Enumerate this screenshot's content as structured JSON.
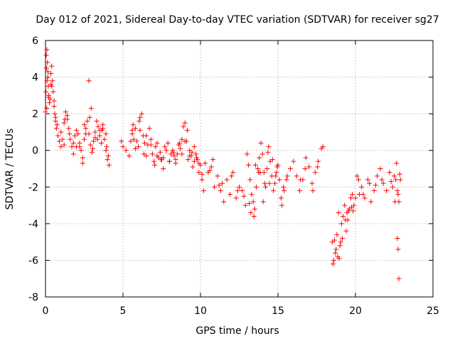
{
  "chart_data": {
    "type": "scatter",
    "title": "Day 012 of 2021, Sidereal Day-to-day VTEC variation (SDTVAR) for receiver sg27",
    "xlabel": "GPS time / hours",
    "ylabel": "SDTVAR / TECUs",
    "xlim": [
      0,
      25
    ],
    "ylim": [
      -8,
      6
    ],
    "xticks": [
      0,
      5,
      10,
      15,
      20,
      25
    ],
    "yticks": [
      -8,
      -6,
      -4,
      -2,
      0,
      2,
      4,
      6
    ],
    "grid": true,
    "marker": "+",
    "color": "#ff0000",
    "series": [
      {
        "name": "sg27",
        "x": [
          0.0,
          0.03,
          0.06,
          0.09,
          0.12,
          0.15,
          0.18,
          0.21,
          0.25,
          0.3,
          0.35,
          0.4,
          0.45,
          0.5,
          0.55,
          0.6,
          0.65,
          0.7,
          0.8,
          0.9,
          1.0,
          1.1,
          1.2,
          1.3,
          1.4,
          1.5,
          1.6,
          1.7,
          1.8,
          1.9,
          2.0,
          2.1,
          2.2,
          2.3,
          2.4,
          2.5,
          2.6,
          2.7,
          2.8,
          2.9,
          3.0,
          3.1,
          3.2,
          3.3,
          3.4,
          3.5,
          3.6,
          3.7,
          3.8,
          3.9,
          4.0,
          4.1,
          0.05,
          0.1,
          0.08,
          0.2,
          0.4,
          0.55,
          0.65,
          1.0,
          1.2,
          1.4,
          1.8,
          2.2,
          2.4,
          2.5,
          2.8,
          2.85,
          2.95,
          3.2,
          3.5,
          3.7,
          3.9,
          4.05,
          0.15,
          0.35,
          0.75,
          1.25,
          1.55,
          2.0,
          2.6,
          3.05,
          3.35,
          3.65,
          3.95,
          4.9,
          5.0,
          5.2,
          5.4,
          5.5,
          5.6,
          5.7,
          5.8,
          5.9,
          6.0,
          6.1,
          6.2,
          6.3,
          6.4,
          6.5,
          6.6,
          6.7,
          6.8,
          6.9,
          7.0,
          7.1,
          7.2,
          7.3,
          7.4,
          7.5,
          7.6,
          7.7,
          7.8,
          7.9,
          8.0,
          8.1,
          8.2,
          8.3,
          8.4,
          8.5,
          8.6,
          8.7,
          8.8,
          8.9,
          9.0,
          9.1,
          9.2,
          9.3,
          9.4,
          9.5,
          9.6,
          9.7,
          9.8,
          9.9,
          10.0,
          10.1,
          10.2,
          5.6,
          5.8,
          6.1,
          6.5,
          6.8,
          7.2,
          7.6,
          8.0,
          8.4,
          8.8,
          9.0,
          9.3,
          9.6,
          9.9,
          10.1,
          5.65,
          6.05,
          6.35,
          7.05,
          7.45,
          8.25,
          8.65,
          9.15,
          9.45,
          9.75,
          10.3,
          10.5,
          10.7,
          10.9,
          11.1,
          11.3,
          11.5,
          11.7,
          11.9,
          12.1,
          12.3,
          12.5,
          12.7,
          12.9,
          13.0,
          13.1,
          13.2,
          13.3,
          13.4,
          13.5,
          13.6,
          13.7,
          13.8,
          13.9,
          14.0,
          14.1,
          14.2,
          14.3,
          14.4,
          14.5,
          14.6,
          14.7,
          14.8,
          14.9,
          15.0,
          15.1,
          15.2,
          15.4,
          15.6,
          15.8,
          16.0,
          16.2,
          16.4,
          16.6,
          16.8,
          17.0,
          17.2,
          17.4,
          17.6,
          17.8,
          17.9,
          10.8,
          11.4,
          12.0,
          12.8,
          13.25,
          13.55,
          13.85,
          14.05,
          14.35,
          14.65,
          14.95,
          15.25,
          15.55,
          16.45,
          16.75,
          17.25,
          17.55,
          10.6,
          11.2,
          12.4,
          13.15,
          13.45,
          13.75,
          14.15,
          14.45,
          14.85,
          15.35,
          18.5,
          18.6,
          18.7,
          18.8,
          18.9,
          19.0,
          19.1,
          19.2,
          19.3,
          19.4,
          19.5,
          19.6,
          19.7,
          19.8,
          19.9,
          20.0,
          20.2,
          20.4,
          20.6,
          20.8,
          21.0,
          21.2,
          21.4,
          21.6,
          21.8,
          22.0,
          22.2,
          22.4,
          22.5,
          22.6,
          22.7,
          22.8,
          22.9,
          18.55,
          18.75,
          18.95,
          19.15,
          19.35,
          19.55,
          19.75,
          20.1,
          20.5,
          20.9,
          21.3,
          21.7,
          22.3,
          22.55,
          22.65,
          22.75,
          22.85,
          22.7,
          22.75,
          22.8,
          18.65,
          18.85,
          19.05,
          19.45,
          19.85,
          20.25
        ],
        "y": [
          2.1,
          3.2,
          4.5,
          5.5,
          4.8,
          4.0,
          3.5,
          3.0,
          2.6,
          2.8,
          4.2,
          4.6,
          3.8,
          3.2,
          2.4,
          2.0,
          1.6,
          1.2,
          0.8,
          0.5,
          0.2,
          0.6,
          1.5,
          2.1,
          1.9,
          1.2,
          0.6,
          0.2,
          0.4,
          0.8,
          1.1,
          0.9,
          0.4,
          0.0,
          -0.4,
          0.6,
          1.2,
          1.6,
          0.9,
          0.3,
          -0.1,
          0.5,
          1.0,
          1.6,
          1.3,
          0.8,
          0.4,
          1.2,
          0.6,
          0.0,
          -0.5,
          -0.8,
          5.2,
          3.8,
          2.3,
          2.9,
          3.5,
          2.7,
          1.8,
          1.0,
          0.3,
          1.7,
          -0.2,
          0.2,
          -0.7,
          1.4,
          3.8,
          1.8,
          2.3,
          0.7,
          1.1,
          1.4,
          0.9,
          -0.3,
          4.3,
          3.6,
          1.4,
          1.7,
          0.9,
          0.2,
          0.9,
          0.1,
          0.6,
          1.1,
          0.2,
          0.5,
          0.2,
          0.0,
          -0.3,
          0.5,
          1.1,
          0.6,
          1.2,
          0.5,
          0.2,
          1.8,
          2.0,
          0.8,
          0.4,
          -0.3,
          0.3,
          1.2,
          0.6,
          -0.2,
          -0.6,
          0.2,
          0.4,
          -0.4,
          -0.1,
          -0.5,
          -1.0,
          0.2,
          0.0,
          0.4,
          -0.6,
          -0.2,
          0.0,
          -0.3,
          -0.5,
          -0.2,
          0.3,
          0.1,
          0.6,
          1.3,
          1.5,
          0.5,
          -0.5,
          0.0,
          -0.3,
          -0.9,
          -0.6,
          -0.2,
          -0.5,
          -1.2,
          -0.8,
          -1.6,
          -2.2,
          0.9,
          0.1,
          1.1,
          0.8,
          0.3,
          -0.3,
          -0.4,
          -0.6,
          -0.7,
          -0.2,
          0.5,
          -0.3,
          0.2,
          -0.7,
          -1.3,
          1.4,
          1.6,
          -0.2,
          -0.8,
          -0.5,
          -0.1,
          0.4,
          1.1,
          -0.1,
          -0.4,
          -0.7,
          -1.2,
          -0.9,
          -2.0,
          -1.4,
          -2.2,
          -2.8,
          -1.6,
          -2.4,
          -1.2,
          -2.6,
          -2.0,
          -2.2,
          -3.0,
          -0.2,
          -0.8,
          -1.6,
          -2.4,
          -2.8,
          -3.2,
          -2.0,
          -1.0,
          -0.4,
          0.4,
          -0.2,
          -1.2,
          -2.0,
          -1.0,
          0.2,
          -0.6,
          -1.4,
          -2.2,
          -1.8,
          -1.2,
          -0.8,
          -1.6,
          -2.6,
          -2.2,
          -1.4,
          -1.0,
          -0.6,
          -1.4,
          -2.2,
          -1.6,
          -0.4,
          -0.9,
          -1.8,
          -1.2,
          -0.6,
          0.1,
          0.2,
          -0.5,
          -1.8,
          -1.4,
          -2.5,
          -3.4,
          -0.8,
          -1.2,
          -2.8,
          -0.1,
          -0.5,
          -0.9,
          -3.0,
          -1.6,
          -1.6,
          -1.0,
          -2.2,
          -0.9,
          -1.1,
          -1.9,
          -2.2,
          -2.9,
          -3.6,
          -1.2,
          -1.8,
          -1.8,
          -1.4,
          -2.0,
          -5.0,
          -6.0,
          -5.6,
          -4.6,
          -3.4,
          -5.2,
          -4.0,
          -3.6,
          -3.0,
          -4.4,
          -3.8,
          -3.2,
          -2.6,
          -2.4,
          -3.0,
          -2.6,
          -1.6,
          -2.0,
          -2.6,
          -1.6,
          -2.8,
          -2.2,
          -1.4,
          -1.0,
          -1.8,
          -2.2,
          -1.2,
          -2.0,
          -1.4,
          -1.6,
          -2.2,
          -2.8,
          -1.6,
          -6.2,
          -5.4,
          -5.9,
          -4.8,
          -3.8,
          -3.3,
          -3.1,
          -1.4,
          -2.4,
          -1.8,
          -1.9,
          -1.6,
          -1.7,
          -2.8,
          -0.7,
          -2.4,
          -1.3,
          -4.8,
          -5.4,
          -7.0,
          -4.9,
          -5.8,
          -5.0,
          -3.4,
          -3.3,
          -2.4
        ]
      }
    ]
  }
}
